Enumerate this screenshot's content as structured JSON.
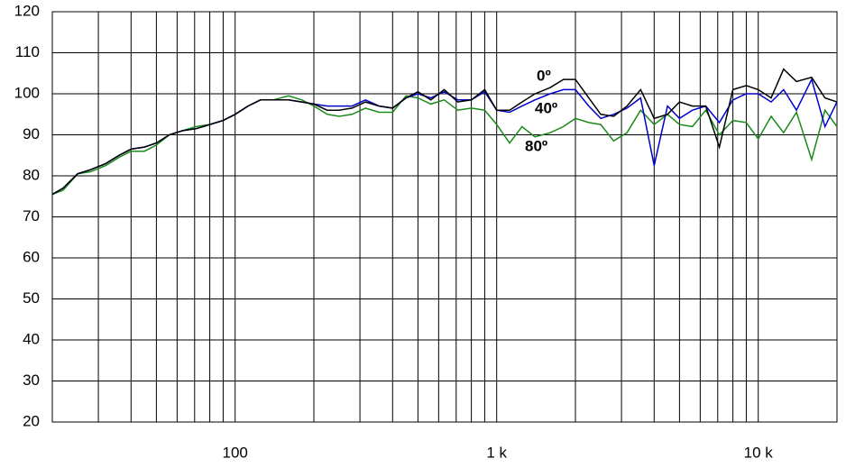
{
  "chart_data": {
    "type": "line",
    "xscale": "log",
    "xlim": [
      20,
      20000
    ],
    "ylim": [
      20,
      120
    ],
    "yticks": [
      20,
      30,
      40,
      50,
      60,
      70,
      80,
      90,
      100,
      110,
      120
    ],
    "xticks": [
      100,
      {
        "value": 1000,
        "label": "1 k"
      },
      {
        "value": 10000,
        "label": "10 k"
      }
    ],
    "xgrid": [
      30,
      40,
      50,
      60,
      70,
      80,
      90,
      200,
      300,
      400,
      500,
      600,
      700,
      800,
      900,
      2000,
      3000,
      4000,
      5000,
      6000,
      7000,
      8000,
      9000
    ],
    "grid": true,
    "x": [
      20,
      22,
      25,
      28,
      32,
      36,
      40,
      45,
      50,
      56,
      63,
      71,
      80,
      90,
      100,
      112,
      125,
      140,
      160,
      180,
      200,
      225,
      250,
      280,
      315,
      355,
      400,
      450,
      500,
      560,
      630,
      710,
      800,
      900,
      1000,
      1120,
      1250,
      1400,
      1600,
      1800,
      2000,
      2250,
      2500,
      2800,
      3150,
      3550,
      4000,
      4500,
      5000,
      5600,
      6300,
      7100,
      8000,
      9000,
      10000,
      11200,
      12500,
      14000,
      16000,
      18000,
      20000
    ],
    "series": [
      {
        "name": "0º",
        "color": "#000000",
        "values": [
          75.5,
          77,
          80.5,
          81.5,
          83,
          85,
          86.5,
          87,
          88,
          90,
          91,
          91.5,
          92.5,
          93.5,
          95,
          97,
          98.5,
          98.5,
          98.5,
          98,
          97.5,
          96,
          96,
          96.5,
          98,
          97,
          96.5,
          99,
          100.5,
          98.5,
          101,
          98,
          98.5,
          101,
          96,
          96,
          98,
          100,
          101.5,
          103.5,
          103.5,
          99,
          95,
          94.5,
          97,
          101,
          94,
          95,
          98,
          97,
          97,
          87,
          101,
          102,
          101,
          99,
          106,
          103,
          104,
          99,
          98
        ]
      },
      {
        "name": "40º",
        "color": "#0000cc",
        "values": [
          75.5,
          77,
          80.5,
          81.5,
          83,
          85,
          86.5,
          87,
          88,
          90,
          91,
          91.5,
          92.5,
          93.5,
          95,
          97,
          98.5,
          98.5,
          98.5,
          98,
          97.5,
          97,
          97,
          97,
          98.5,
          97,
          96.5,
          99,
          100,
          99,
          100.5,
          98.5,
          98.5,
          100.5,
          96,
          95.5,
          97,
          98.5,
          100,
          101,
          101,
          97,
          94,
          95,
          96.5,
          99,
          82.5,
          97,
          94,
          96,
          97,
          93,
          98.5,
          100,
          100,
          98,
          101,
          96,
          103.5,
          92,
          98
        ]
      },
      {
        "name": "80º",
        "color": "#1a8a1a",
        "values": [
          75.5,
          76.5,
          80.5,
          81,
          82.5,
          84.5,
          86,
          86,
          87.5,
          90,
          91,
          92,
          92.5,
          93.5,
          95,
          97,
          98.5,
          98.5,
          99.5,
          98.5,
          97,
          95,
          94.5,
          95,
          96.5,
          95.5,
          95.5,
          99.5,
          99,
          97.5,
          98.5,
          96,
          96.5,
          96,
          92.5,
          88,
          92,
          89.5,
          90.5,
          92,
          94,
          93,
          92.5,
          88.5,
          90.5,
          96,
          92.5,
          95,
          92.5,
          92,
          96,
          90,
          93.5,
          93,
          89,
          94.5,
          90.5,
          95.5,
          84,
          96,
          92
        ]
      }
    ]
  }
}
